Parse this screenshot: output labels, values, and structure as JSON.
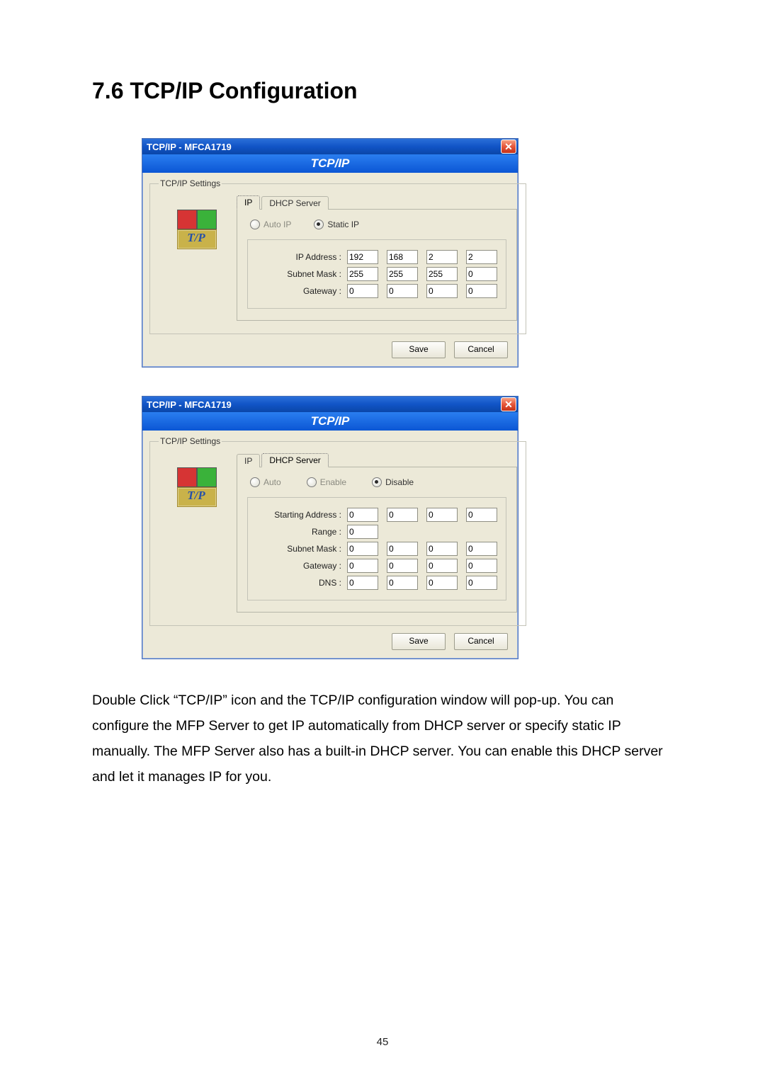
{
  "page_number": "45",
  "heading": "7.6   TCP/IP Configuration",
  "description": "Double Click “TCP/IP” icon and the TCP/IP configuration window will pop-up. You can configure the MFP Server to get IP automatically from DHCP server or specify static IP manually. The MFP Server also has a built-in DHCP server. You can enable this DHCP server and let it manages IP for you.",
  "dialog1": {
    "title": "TCP/IP - MFCA1719",
    "banner": "TCP/IP",
    "groupbox_label": "TCP/IP Settings",
    "tabs": {
      "ip": "IP",
      "dhcp": "DHCP Server",
      "active": "ip"
    },
    "radios": {
      "auto": "Auto IP",
      "static": "Static IP",
      "selected": "static"
    },
    "fields": {
      "ip_label": "IP Address :",
      "mask_label": "Subnet Mask :",
      "gw_label": "Gateway :",
      "ip": [
        "192",
        "168",
        "2",
        "2"
      ],
      "mask": [
        "255",
        "255",
        "255",
        "0"
      ],
      "gw": [
        "0",
        "0",
        "0",
        "0"
      ]
    },
    "buttons": {
      "save": "Save",
      "cancel": "Cancel"
    }
  },
  "dialog2": {
    "title": "TCP/IP - MFCA1719",
    "banner": "TCP/IP",
    "groupbox_label": "TCP/IP Settings",
    "tabs": {
      "ip": "IP",
      "dhcp": "DHCP Server",
      "active": "dhcp"
    },
    "radios": {
      "auto": "Auto",
      "enable": "Enable",
      "disable": "Disable",
      "selected": "disable"
    },
    "fields": {
      "start_label": "Starting Address :",
      "range_label": "Range :",
      "mask_label": "Subnet Mask :",
      "gw_label": "Gateway :",
      "dns_label": "DNS :",
      "start": [
        "0",
        "0",
        "0",
        "0"
      ],
      "range": [
        "0"
      ],
      "mask": [
        "0",
        "0",
        "0",
        "0"
      ],
      "gw": [
        "0",
        "0",
        "0",
        "0"
      ],
      "dns": [
        "0",
        "0",
        "0",
        "0"
      ]
    },
    "buttons": {
      "save": "Save",
      "cancel": "Cancel"
    }
  },
  "colors": {
    "titlebar_gradient": [
      "#2a6fd9",
      "#0a46a8"
    ],
    "banner_gradient": [
      "#2a7ef0",
      "#0b56d4"
    ],
    "dialog_bg": "#ece9d8",
    "close_red": "#e6573b"
  }
}
